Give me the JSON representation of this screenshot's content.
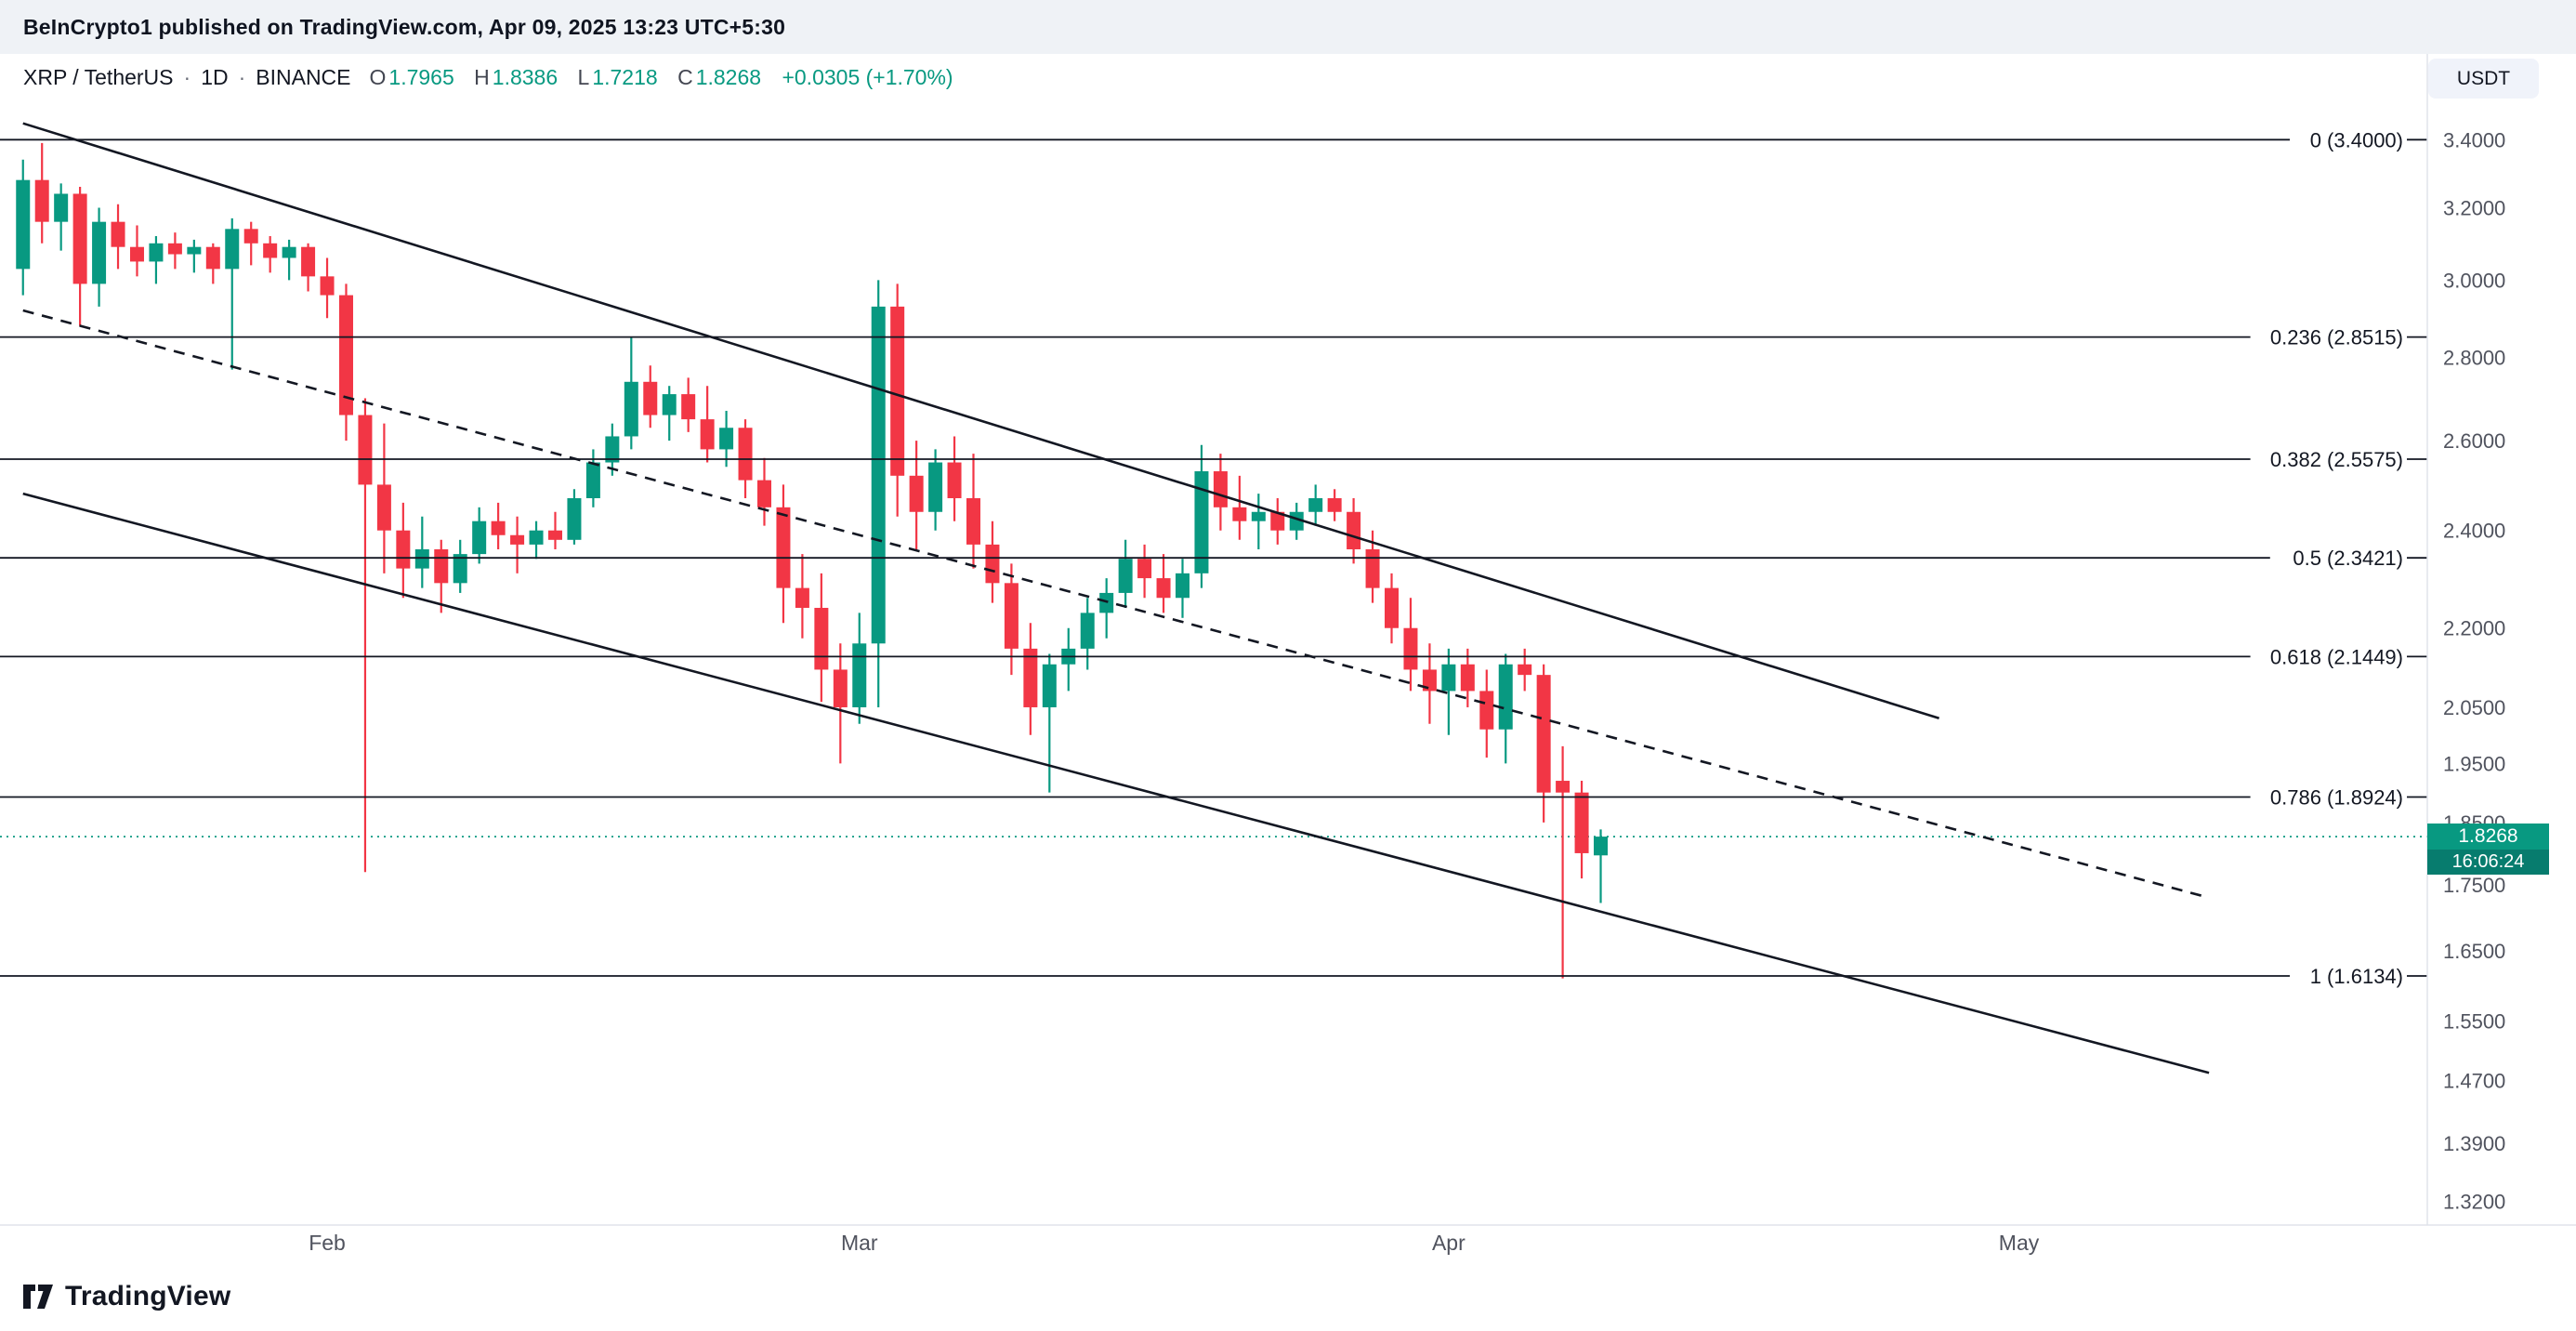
{
  "attribution": "BeInCrypto1 published on TradingView.com, Apr 09, 2025 13:23 UTC+5:30",
  "legend": {
    "symbol": "XRP / TetherUS",
    "separator": "·",
    "interval": "1D",
    "exchange": "BINANCE",
    "o_label": "O",
    "h_label": "H",
    "l_label": "L",
    "c_label": "C",
    "open": "1.7965",
    "high": "1.8386",
    "low": "1.7218",
    "close": "1.8268",
    "change": "+0.0305 (+1.70%)"
  },
  "currency_button": "USDT",
  "price_label": {
    "value": "1.8268",
    "countdown": "16:06:24"
  },
  "watermark": "TradingView",
  "colors": {
    "up": "#089981",
    "down": "#f23645",
    "axis_text": "#50535e",
    "drawing": "#131722",
    "fib_line": "#131722",
    "last_price_line": "#089981",
    "separator_line": "#e0e3eb"
  },
  "price_axis": {
    "ticks": [
      "3.4000",
      "3.2000",
      "3.0000",
      "2.8000",
      "2.6000",
      "2.4000",
      "2.2000",
      "2.0500",
      "1.9500",
      "1.8500",
      "1.7500",
      "1.6500",
      "1.5500",
      "1.4700",
      "1.3900",
      "1.3200"
    ]
  },
  "time_axis": {
    "months": [
      {
        "label": "Feb",
        "day": 16
      },
      {
        "label": "Mar",
        "day": 44
      },
      {
        "label": "Apr",
        "day": 75
      },
      {
        "label": "May",
        "day": 105
      }
    ]
  },
  "chart_data": {
    "type": "candlestick",
    "title": "XRP / TetherUS · 1D · BINANCE",
    "y_scale": "log",
    "last_price": 1.8268,
    "fib_levels": [
      {
        "label": "0 (3.4000)",
        "price": 3.4
      },
      {
        "label": "0.236 (2.8515)",
        "price": 2.8515
      },
      {
        "label": "0.382 (2.5575)",
        "price": 2.5575
      },
      {
        "label": "0.5 (2.3421)",
        "price": 2.3421
      },
      {
        "label": "0.618 (2.1449)",
        "price": 2.1449
      },
      {
        "label": "0.786 (1.8924)",
        "price": 1.8924
      },
      {
        "label": "1 (1.6134)",
        "price": 1.6134
      }
    ],
    "trendlines": [
      {
        "id": "channel-top-line",
        "style": "solid",
        "from": {
          "day": 0,
          "price": 3.45
        },
        "to": {
          "day": 100.8,
          "price": 2.03
        }
      },
      {
        "id": "channel-mid-line",
        "style": "dashed",
        "from": {
          "day": 0,
          "price": 2.92
        },
        "to": {
          "day": 115,
          "price": 1.73
        }
      },
      {
        "id": "channel-bottom-line",
        "style": "solid",
        "from": {
          "day": 0,
          "price": 2.48
        },
        "to": {
          "day": 115,
          "price": 1.48
        }
      }
    ],
    "candles": [
      [
        "2025-01-16",
        3.03,
        3.34,
        2.96,
        3.28
      ],
      [
        "2025-01-17",
        3.28,
        3.39,
        3.1,
        3.16
      ],
      [
        "2025-01-18",
        3.16,
        3.27,
        3.08,
        3.24
      ],
      [
        "2025-01-19",
        3.24,
        3.26,
        2.88,
        2.99
      ],
      [
        "2025-01-20",
        2.99,
        3.2,
        2.93,
        3.16
      ],
      [
        "2025-01-21",
        3.16,
        3.21,
        3.03,
        3.09
      ],
      [
        "2025-01-22",
        3.09,
        3.15,
        3.01,
        3.05
      ],
      [
        "2025-01-23",
        3.05,
        3.12,
        2.99,
        3.1
      ],
      [
        "2025-01-24",
        3.1,
        3.13,
        3.03,
        3.07
      ],
      [
        "2025-01-25",
        3.07,
        3.11,
        3.02,
        3.09
      ],
      [
        "2025-01-26",
        3.09,
        3.1,
        2.99,
        3.03
      ],
      [
        "2025-01-27",
        3.03,
        3.17,
        2.77,
        3.14
      ],
      [
        "2025-01-28",
        3.14,
        3.16,
        3.04,
        3.1
      ],
      [
        "2025-01-29",
        3.1,
        3.12,
        3.02,
        3.06
      ],
      [
        "2025-01-30",
        3.06,
        3.11,
        3.0,
        3.09
      ],
      [
        "2025-01-31",
        3.09,
        3.1,
        2.97,
        3.01
      ],
      [
        "2025-02-01",
        3.01,
        3.06,
        2.9,
        2.96
      ],
      [
        "2025-02-02",
        2.96,
        2.99,
        2.6,
        2.66
      ],
      [
        "2025-02-03",
        2.66,
        2.7,
        1.77,
        2.5
      ],
      [
        "2025-02-04",
        2.5,
        2.64,
        2.31,
        2.4
      ],
      [
        "2025-02-05",
        2.4,
        2.46,
        2.26,
        2.32
      ],
      [
        "2025-02-06",
        2.32,
        2.43,
        2.28,
        2.36
      ],
      [
        "2025-02-07",
        2.36,
        2.38,
        2.23,
        2.29
      ],
      [
        "2025-02-08",
        2.29,
        2.38,
        2.27,
        2.35
      ],
      [
        "2025-02-09",
        2.35,
        2.45,
        2.33,
        2.42
      ],
      [
        "2025-02-10",
        2.42,
        2.46,
        2.36,
        2.39
      ],
      [
        "2025-02-11",
        2.39,
        2.43,
        2.31,
        2.37
      ],
      [
        "2025-02-12",
        2.37,
        2.42,
        2.34,
        2.4
      ],
      [
        "2025-02-13",
        2.4,
        2.44,
        2.36,
        2.38
      ],
      [
        "2025-02-14",
        2.38,
        2.49,
        2.37,
        2.47
      ],
      [
        "2025-02-15",
        2.47,
        2.58,
        2.45,
        2.55
      ],
      [
        "2025-02-16",
        2.55,
        2.64,
        2.52,
        2.61
      ],
      [
        "2025-02-17",
        2.61,
        2.85,
        2.58,
        2.74
      ],
      [
        "2025-02-18",
        2.74,
        2.78,
        2.63,
        2.66
      ],
      [
        "2025-02-19",
        2.66,
        2.73,
        2.6,
        2.71
      ],
      [
        "2025-02-20",
        2.71,
        2.75,
        2.62,
        2.65
      ],
      [
        "2025-02-21",
        2.65,
        2.73,
        2.55,
        2.58
      ],
      [
        "2025-02-22",
        2.58,
        2.67,
        2.54,
        2.63
      ],
      [
        "2025-02-23",
        2.63,
        2.65,
        2.47,
        2.51
      ],
      [
        "2025-02-24",
        2.51,
        2.56,
        2.41,
        2.45
      ],
      [
        "2025-02-25",
        2.45,
        2.5,
        2.21,
        2.28
      ],
      [
        "2025-02-26",
        2.28,
        2.35,
        2.18,
        2.24
      ],
      [
        "2025-02-27",
        2.24,
        2.31,
        2.06,
        2.12
      ],
      [
        "2025-02-28",
        2.12,
        2.17,
        1.95,
        2.05
      ],
      [
        "2025-03-01",
        2.05,
        2.23,
        2.02,
        2.17
      ],
      [
        "2025-03-02",
        2.17,
        3.0,
        2.05,
        2.93
      ],
      [
        "2025-03-03",
        2.93,
        2.99,
        2.43,
        2.52
      ],
      [
        "2025-03-04",
        2.52,
        2.6,
        2.36,
        2.44
      ],
      [
        "2025-03-05",
        2.44,
        2.58,
        2.4,
        2.55
      ],
      [
        "2025-03-06",
        2.55,
        2.61,
        2.42,
        2.47
      ],
      [
        "2025-03-07",
        2.47,
        2.57,
        2.32,
        2.37
      ],
      [
        "2025-03-08",
        2.37,
        2.42,
        2.25,
        2.29
      ],
      [
        "2025-03-09",
        2.29,
        2.33,
        2.11,
        2.16
      ],
      [
        "2025-03-10",
        2.16,
        2.21,
        2.0,
        2.05
      ],
      [
        "2025-03-11",
        2.05,
        2.15,
        1.9,
        2.13
      ],
      [
        "2025-03-12",
        2.13,
        2.2,
        2.08,
        2.16
      ],
      [
        "2025-03-13",
        2.16,
        2.26,
        2.12,
        2.23
      ],
      [
        "2025-03-14",
        2.23,
        2.3,
        2.18,
        2.27
      ],
      [
        "2025-03-15",
        2.27,
        2.38,
        2.24,
        2.34
      ],
      [
        "2025-03-16",
        2.34,
        2.37,
        2.26,
        2.3
      ],
      [
        "2025-03-17",
        2.3,
        2.35,
        2.23,
        2.26
      ],
      [
        "2025-03-18",
        2.26,
        2.34,
        2.22,
        2.31
      ],
      [
        "2025-03-19",
        2.31,
        2.59,
        2.28,
        2.53
      ],
      [
        "2025-03-20",
        2.53,
        2.57,
        2.4,
        2.45
      ],
      [
        "2025-03-21",
        2.45,
        2.52,
        2.38,
        2.42
      ],
      [
        "2025-03-22",
        2.42,
        2.48,
        2.36,
        2.44
      ],
      [
        "2025-03-23",
        2.44,
        2.47,
        2.37,
        2.4
      ],
      [
        "2025-03-24",
        2.4,
        2.46,
        2.38,
        2.44
      ],
      [
        "2025-03-25",
        2.44,
        2.5,
        2.41,
        2.47
      ],
      [
        "2025-03-26",
        2.47,
        2.49,
        2.42,
        2.44
      ],
      [
        "2025-03-27",
        2.44,
        2.47,
        2.33,
        2.36
      ],
      [
        "2025-03-28",
        2.36,
        2.4,
        2.25,
        2.28
      ],
      [
        "2025-03-29",
        2.28,
        2.31,
        2.17,
        2.2
      ],
      [
        "2025-03-30",
        2.2,
        2.26,
        2.08,
        2.12
      ],
      [
        "2025-03-31",
        2.12,
        2.17,
        2.02,
        2.08
      ],
      [
        "2025-04-01",
        2.08,
        2.16,
        2.0,
        2.13
      ],
      [
        "2025-04-02",
        2.13,
        2.16,
        2.05,
        2.08
      ],
      [
        "2025-04-03",
        2.08,
        2.12,
        1.96,
        2.01
      ],
      [
        "2025-04-04",
        2.01,
        2.15,
        1.95,
        2.13
      ],
      [
        "2025-04-05",
        2.13,
        2.16,
        2.08,
        2.11
      ],
      [
        "2025-04-06",
        2.11,
        2.13,
        1.85,
        1.9
      ],
      [
        "2025-04-07",
        1.92,
        1.98,
        1.61,
        1.9
      ],
      [
        "2025-04-08",
        1.9,
        1.92,
        1.76,
        1.8
      ],
      [
        "2025-04-09",
        1.7965,
        1.8386,
        1.7218,
        1.8268
      ]
    ]
  }
}
